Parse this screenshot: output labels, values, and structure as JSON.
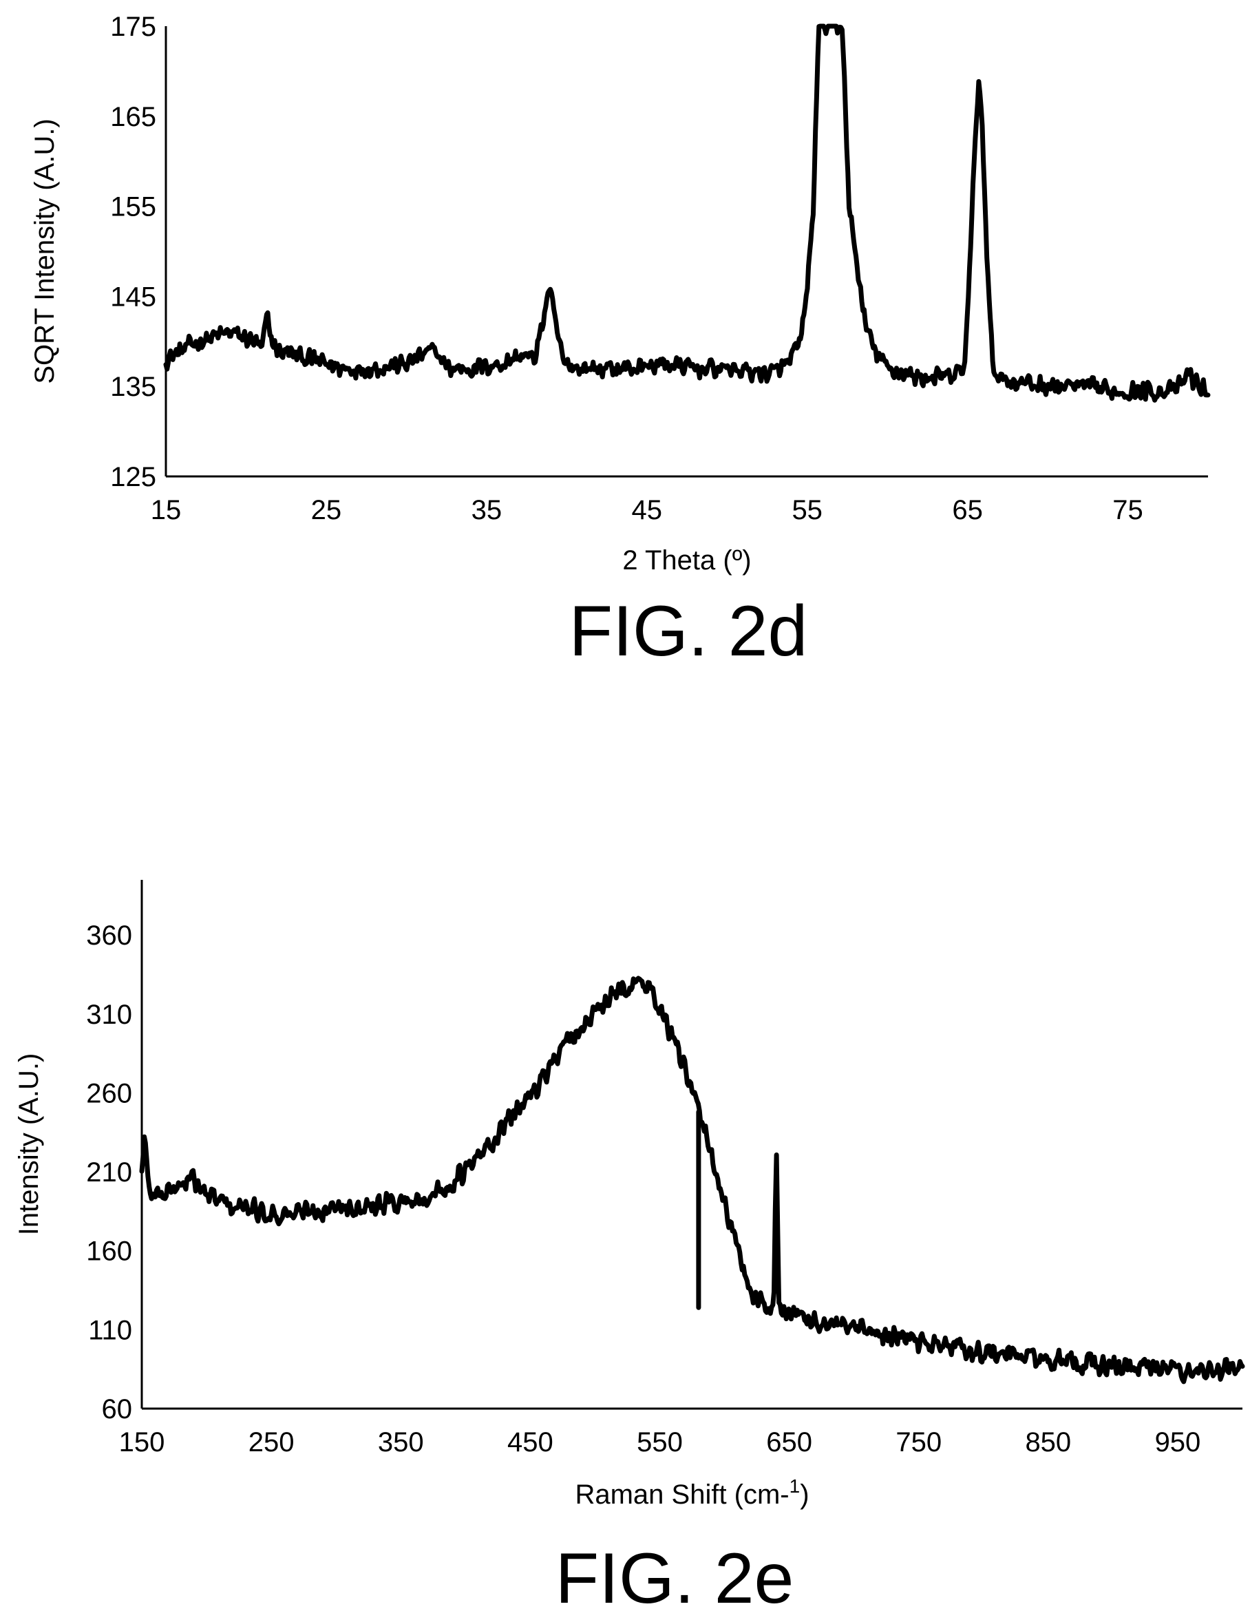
{
  "chart_data": [
    {
      "figure_label": "FIG. 2d",
      "type": "line",
      "xlabel": "2 Theta (º)",
      "ylabel": "SQRT Intensity (A.U.)",
      "xlim": [
        15,
        80
      ],
      "ylim": [
        125,
        175
      ],
      "xticks": [
        15,
        25,
        35,
        45,
        55,
        65,
        75
      ],
      "yticks": [
        125,
        135,
        145,
        155,
        165,
        175
      ],
      "grid": false,
      "legend": "none",
      "noise_amplitude": 1.2,
      "series": [
        {
          "color": "#000000",
          "x": [
            15,
            17,
            19,
            20.5,
            21,
            21.3,
            21.6,
            22,
            24,
            26,
            28,
            30,
            31,
            31.8,
            32.6,
            34,
            36,
            37.2,
            38,
            38.6,
            38.9,
            39.2,
            39.8,
            41,
            44,
            46,
            48,
            50,
            52,
            53,
            54,
            54.6,
            55,
            55.4,
            55.7,
            56,
            56.4,
            56.8,
            57.2,
            57.6,
            58,
            58.6,
            59.2,
            60,
            62,
            64,
            64.8,
            65.2,
            65.5,
            65.7,
            65.9,
            66.2,
            66.6,
            67,
            68,
            70,
            72,
            74,
            76,
            78,
            78.8,
            79.4,
            80
          ],
          "y": [
            138,
            140,
            141,
            140,
            139,
            143,
            140,
            139,
            138,
            137,
            137,
            137.5,
            138.5,
            139,
            137,
            137,
            137.5,
            138.5,
            138,
            143,
            146,
            143,
            137.5,
            137,
            137,
            137.5,
            137,
            137,
            136.5,
            136.5,
            138,
            140,
            146,
            155,
            175,
            175,
            175,
            175,
            175,
            155,
            150,
            142,
            139,
            137,
            136,
            136,
            137,
            150,
            164,
            169,
            164,
            150,
            137,
            136,
            135.5,
            135,
            135,
            134.5,
            134.5,
            134.5,
            136.5,
            135,
            134.5
          ]
        }
      ]
    },
    {
      "figure_label": "FIG. 2e",
      "type": "line",
      "xlabel": "Raman Shift (cm-1)",
      "ylabel": "Intensity (A.U.)",
      "xlim": [
        150,
        1000
      ],
      "ylim": [
        60,
        395
      ],
      "xticks": [
        150,
        250,
        350,
        450,
        550,
        650,
        750,
        850,
        950
      ],
      "yticks": [
        60,
        110,
        160,
        210,
        260,
        310,
        360
      ],
      "grid": false,
      "legend": "none",
      "noise_amplitude": 8,
      "series": [
        {
          "color": "#000000",
          "x": [
            150,
            152,
            155,
            160,
            170,
            180,
            190,
            200,
            220,
            240,
            260,
            280,
            300,
            320,
            340,
            360,
            380,
            400,
            420,
            440,
            460,
            480,
            500,
            510,
            520,
            530,
            540,
            550,
            560,
            570,
            580,
            590,
            600,
            610,
            620,
            630,
            638,
            640,
            642,
            650,
            660,
            680,
            700,
            720,
            740,
            760,
            780,
            800,
            820,
            840,
            860,
            880,
            900,
            920,
            940,
            960,
            980,
            1000
          ],
          "y": [
            210,
            235,
            200,
            195,
            198,
            202,
            205,
            195,
            188,
            185,
            183,
            185,
            188,
            190,
            190,
            192,
            197,
            210,
            228,
            250,
            270,
            293,
            310,
            318,
            325,
            330,
            328,
            315,
            295,
            272,
            248,
            222,
            190,
            160,
            135,
            126,
            124,
            225,
            124,
            121,
            118,
            113,
            110,
            107,
            104,
            101,
            99,
            96,
            94,
            92,
            89,
            88,
            87,
            86,
            85,
            84,
            84,
            85
          ]
        }
      ]
    }
  ]
}
